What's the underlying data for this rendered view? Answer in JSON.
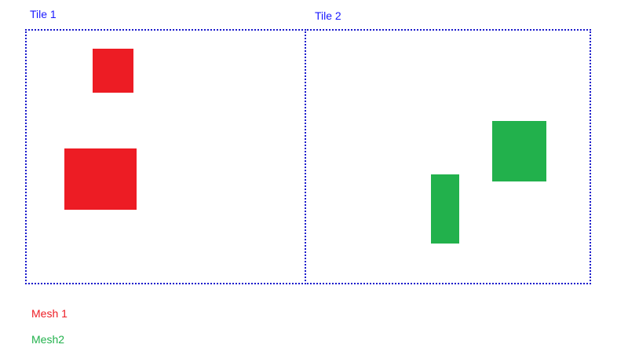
{
  "tiles": [
    {
      "label": "Tile 1"
    },
    {
      "label": "Tile 2"
    }
  ],
  "legend": {
    "mesh1": {
      "label": "Mesh 1",
      "color": "#ed1c24"
    },
    "mesh2": {
      "label": "Mesh2",
      "color": "#22b14c"
    }
  },
  "colors": {
    "tile_border": "#1a1acc",
    "tile_label": "#1a1aff"
  }
}
